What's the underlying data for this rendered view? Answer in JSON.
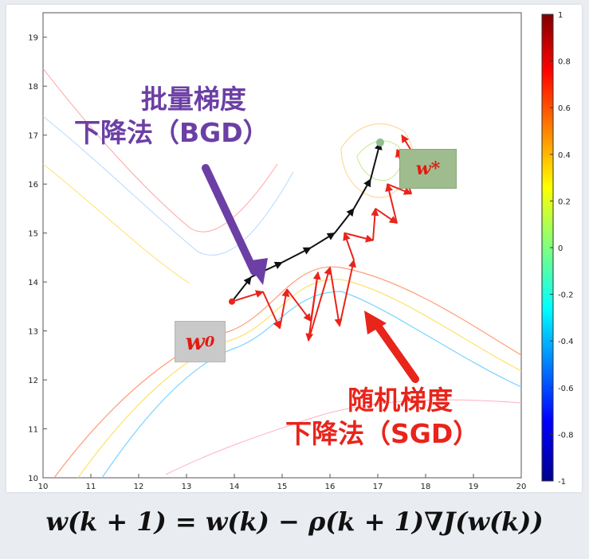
{
  "callouts": {
    "bgd": {
      "line1": "批量梯度",
      "line2": "下降法（BGD）"
    },
    "sgd": {
      "line1": "随机梯度",
      "line2": "下降法（SGD）"
    }
  },
  "points": {
    "start": {
      "label": "w",
      "subscript": "0"
    },
    "optimum": {
      "label": "w*"
    }
  },
  "formula": "w(k + 1) = w(k) − ρ(k + 1)∇J(w(k))",
  "colors": {
    "bgd": "#6c3fa5",
    "sgd": "#e8241b",
    "path_bgd": "#111111"
  },
  "chart_data": {
    "type": "contour",
    "xlim": [
      10,
      20
    ],
    "ylim": [
      10,
      19.5
    ],
    "x_ticks": [
      "10",
      "11",
      "12",
      "13",
      "14",
      "15",
      "16",
      "17",
      "18",
      "19",
      "20"
    ],
    "y_ticks": [
      "10",
      "11",
      "12",
      "13",
      "14",
      "15",
      "16",
      "17",
      "18",
      "19"
    ],
    "colorbar": {
      "min": -1,
      "max": 1,
      "ticks": [
        "1",
        "0.8",
        "0.6",
        "0.4",
        "0.2",
        "0",
        "-0.2",
        "-0.4",
        "-0.6",
        "-0.8",
        "-1"
      ]
    },
    "start_point": [
      13.95,
      13.6
    ],
    "optimum_point": [
      17.05,
      16.85
    ],
    "bgd_path": [
      [
        13.95,
        13.6
      ],
      [
        14.35,
        14.1
      ],
      [
        15.0,
        14.4
      ],
      [
        15.6,
        14.7
      ],
      [
        16.1,
        15.0
      ],
      [
        16.5,
        15.5
      ],
      [
        16.85,
        16.1
      ],
      [
        17.05,
        16.85
      ]
    ],
    "sgd_path": [
      [
        13.95,
        13.6
      ],
      [
        14.6,
        13.8
      ],
      [
        14.95,
        13.05
      ],
      [
        15.1,
        13.85
      ],
      [
        15.6,
        13.2
      ],
      [
        15.75,
        14.2
      ],
      [
        15.55,
        12.8
      ],
      [
        16.0,
        14.3
      ],
      [
        16.2,
        13.1
      ],
      [
        16.5,
        14.45
      ],
      [
        16.3,
        15.0
      ],
      [
        16.9,
        14.85
      ],
      [
        16.95,
        15.5
      ],
      [
        17.4,
        15.2
      ],
      [
        17.2,
        16.0
      ],
      [
        17.7,
        15.8
      ],
      [
        17.4,
        16.7
      ],
      [
        17.85,
        16.45
      ],
      [
        17.5,
        17.0
      ]
    ]
  }
}
